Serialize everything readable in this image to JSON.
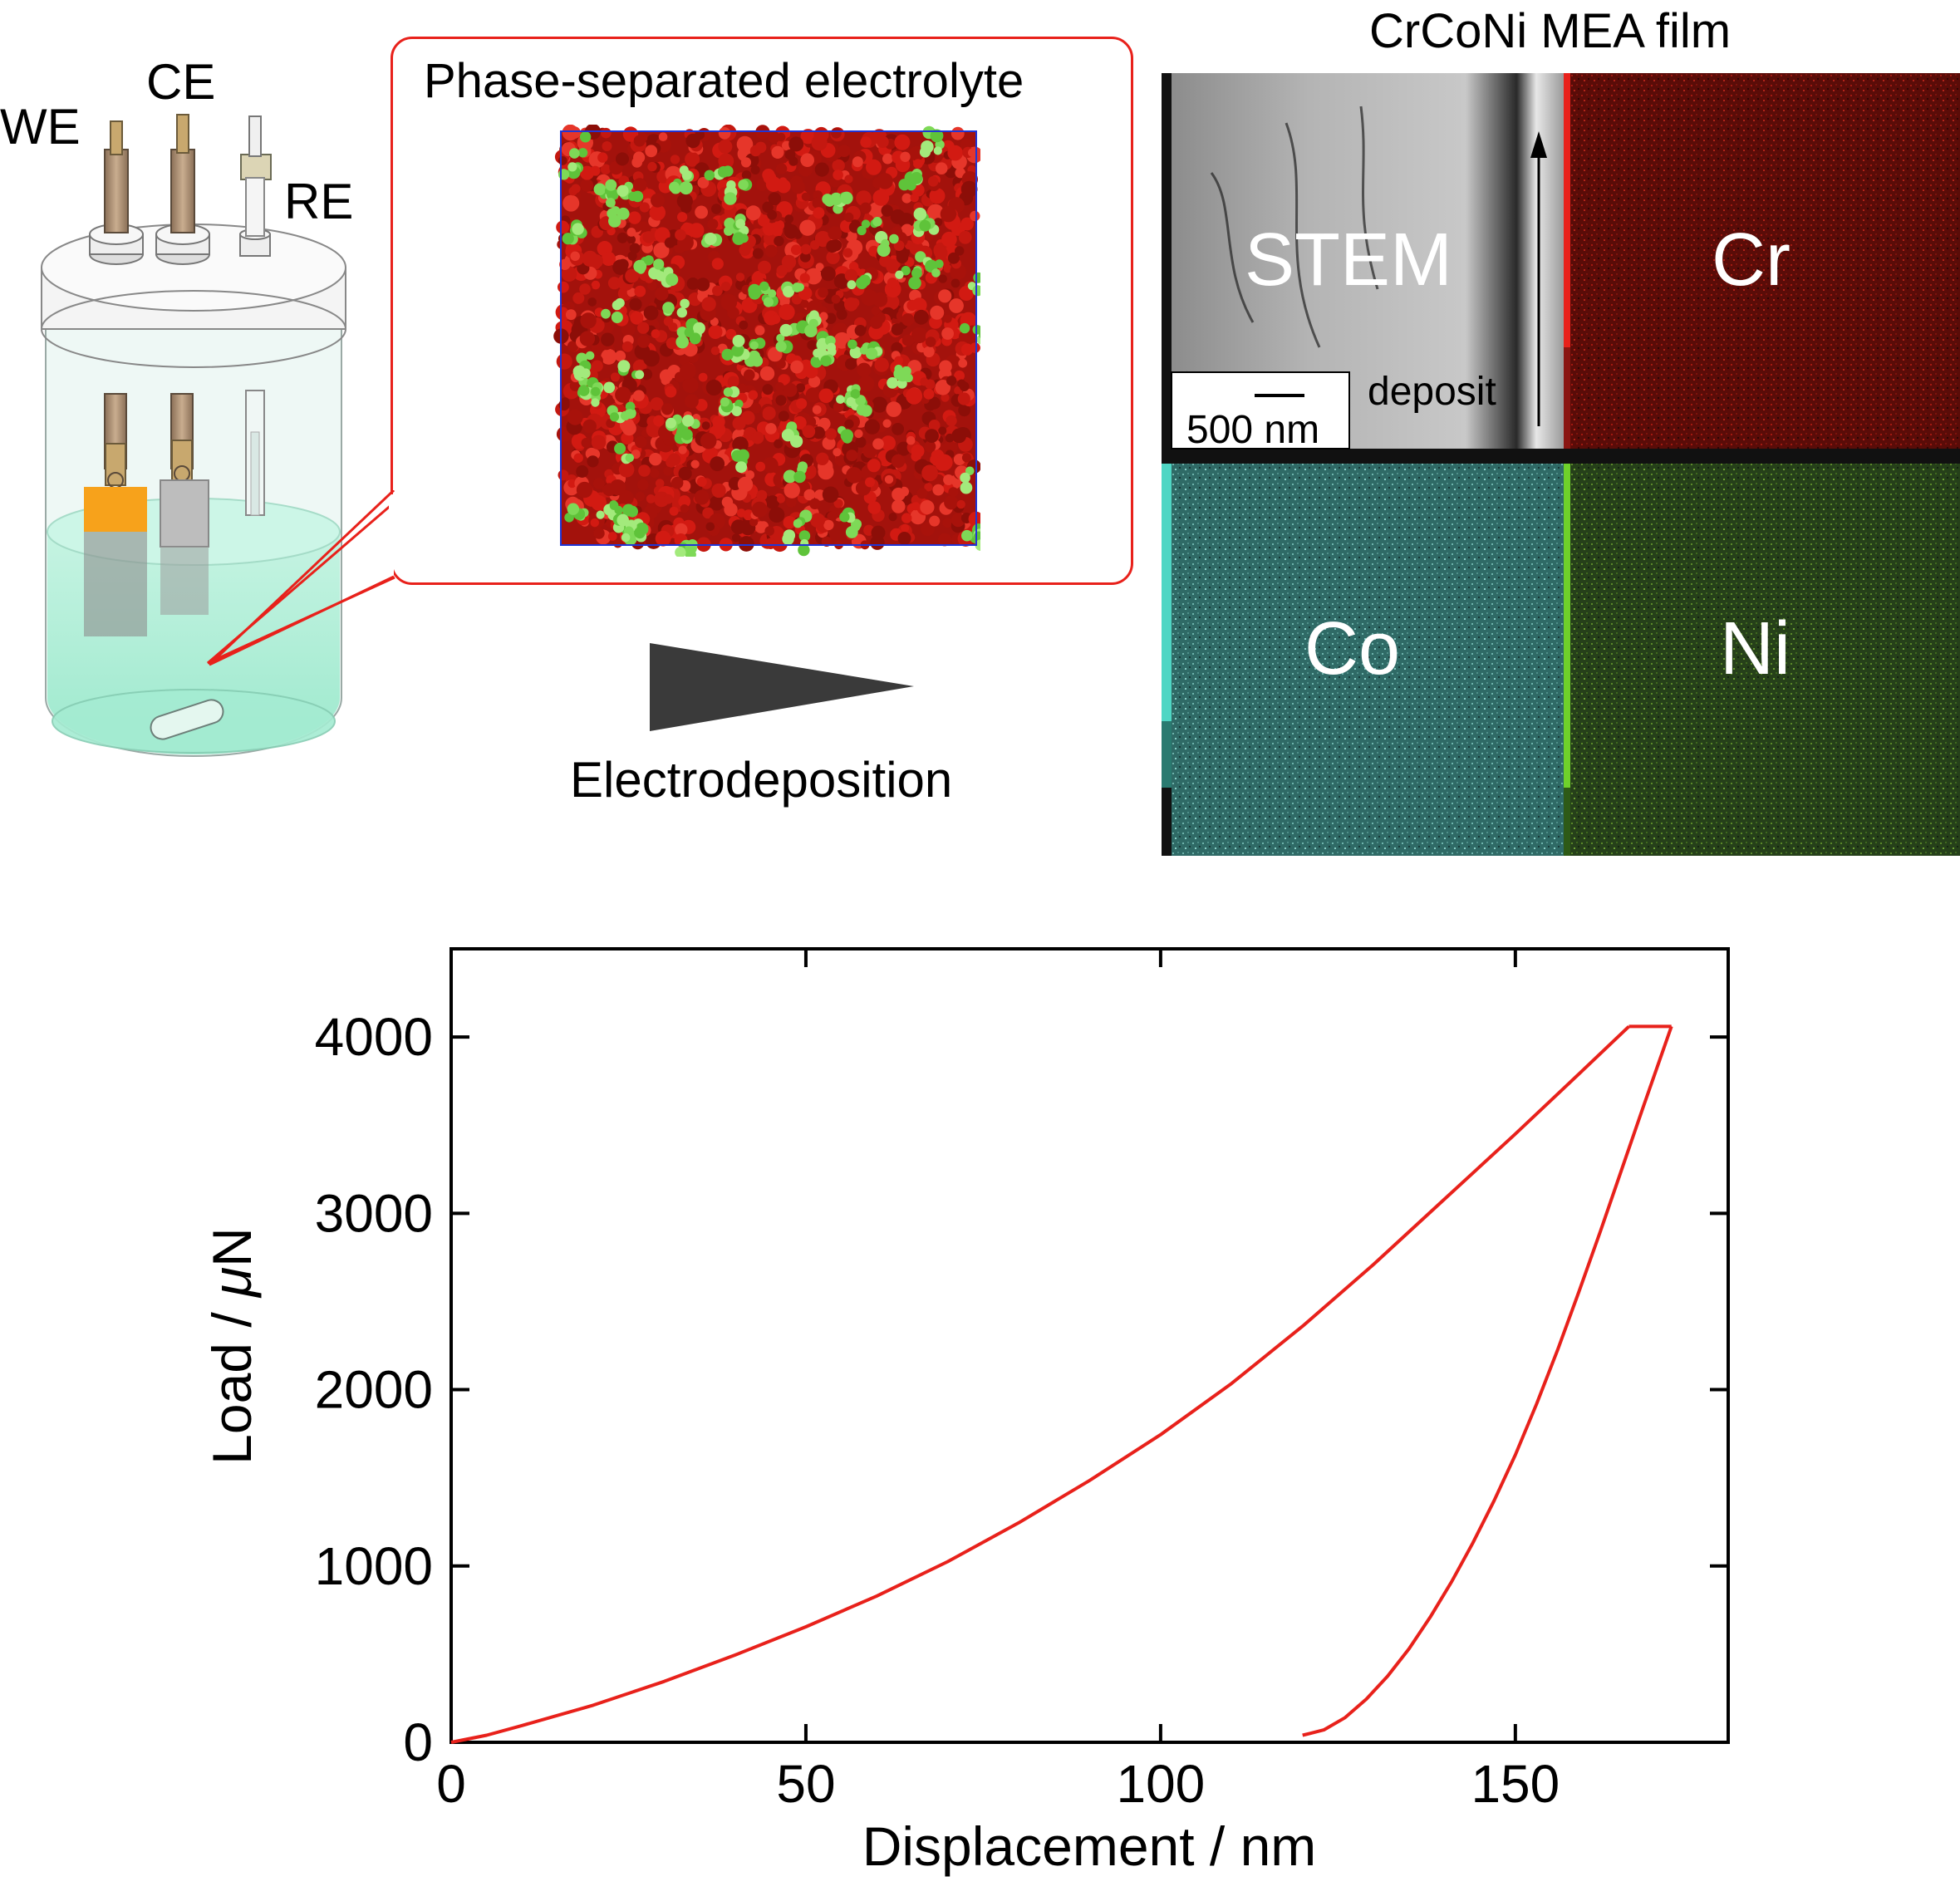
{
  "cell": {
    "we_label": "WE",
    "ce_label": "CE",
    "re_label": "RE"
  },
  "inset": {
    "title": "Phase-separated electrolyte"
  },
  "process": {
    "label": "Electrodeposition"
  },
  "film": {
    "title": "CrCoNi MEA film",
    "stem_label": "STEM",
    "cr_label": "Cr",
    "co_label": "Co",
    "ni_label": "Ni",
    "deposit_label": "deposit",
    "scale_label": "500 nm"
  },
  "colors": {
    "curve": "#e8211b",
    "callout": "#e8211b",
    "electrolyte_red": "#c0150f",
    "electrolyte_green": "#7ed957",
    "cr_map": "#5a0c08",
    "co_map": "#2f6a66",
    "ni_map": "#26401a",
    "electrolyte_liquid": "#a8ecd4",
    "we_electrode": "#f7a21b"
  },
  "chart_data": {
    "type": "line",
    "xlabel": "Displacement / nm",
    "ylabel_prefix": "Load / ",
    "ylabel_mu": "μ",
    "ylabel_suffix": "N",
    "xlim": [
      0,
      180
    ],
    "ylim": [
      0,
      4500
    ],
    "xticks": [
      0,
      50,
      100,
      150
    ],
    "yticks": [
      0,
      1000,
      2000,
      3000,
      4000
    ],
    "grid": false,
    "series": [
      {
        "segment": "loading",
        "x": [
          0,
          5,
          10,
          20,
          30,
          40,
          50,
          60,
          70,
          80,
          90,
          100,
          110,
          120,
          130,
          140,
          150,
          160,
          166
        ],
        "y": [
          0,
          40,
          95,
          210,
          345,
          495,
          655,
          830,
          1025,
          1245,
          1485,
          1745,
          2035,
          2360,
          2710,
          3080,
          3450,
          3830,
          4060
        ]
      },
      {
        "segment": "hold",
        "x": [
          166,
          172
        ],
        "y": [
          4060,
          4060
        ]
      },
      {
        "segment": "unloading",
        "x": [
          172,
          168,
          165,
          162,
          159,
          156,
          153,
          150,
          147,
          144,
          141,
          138,
          135,
          132,
          129,
          126,
          123,
          121,
          120
        ],
        "y": [
          4060,
          3600,
          3250,
          2900,
          2560,
          2230,
          1920,
          1630,
          1370,
          1130,
          910,
          710,
          530,
          375,
          245,
          140,
          70,
          50,
          40
        ]
      }
    ]
  }
}
